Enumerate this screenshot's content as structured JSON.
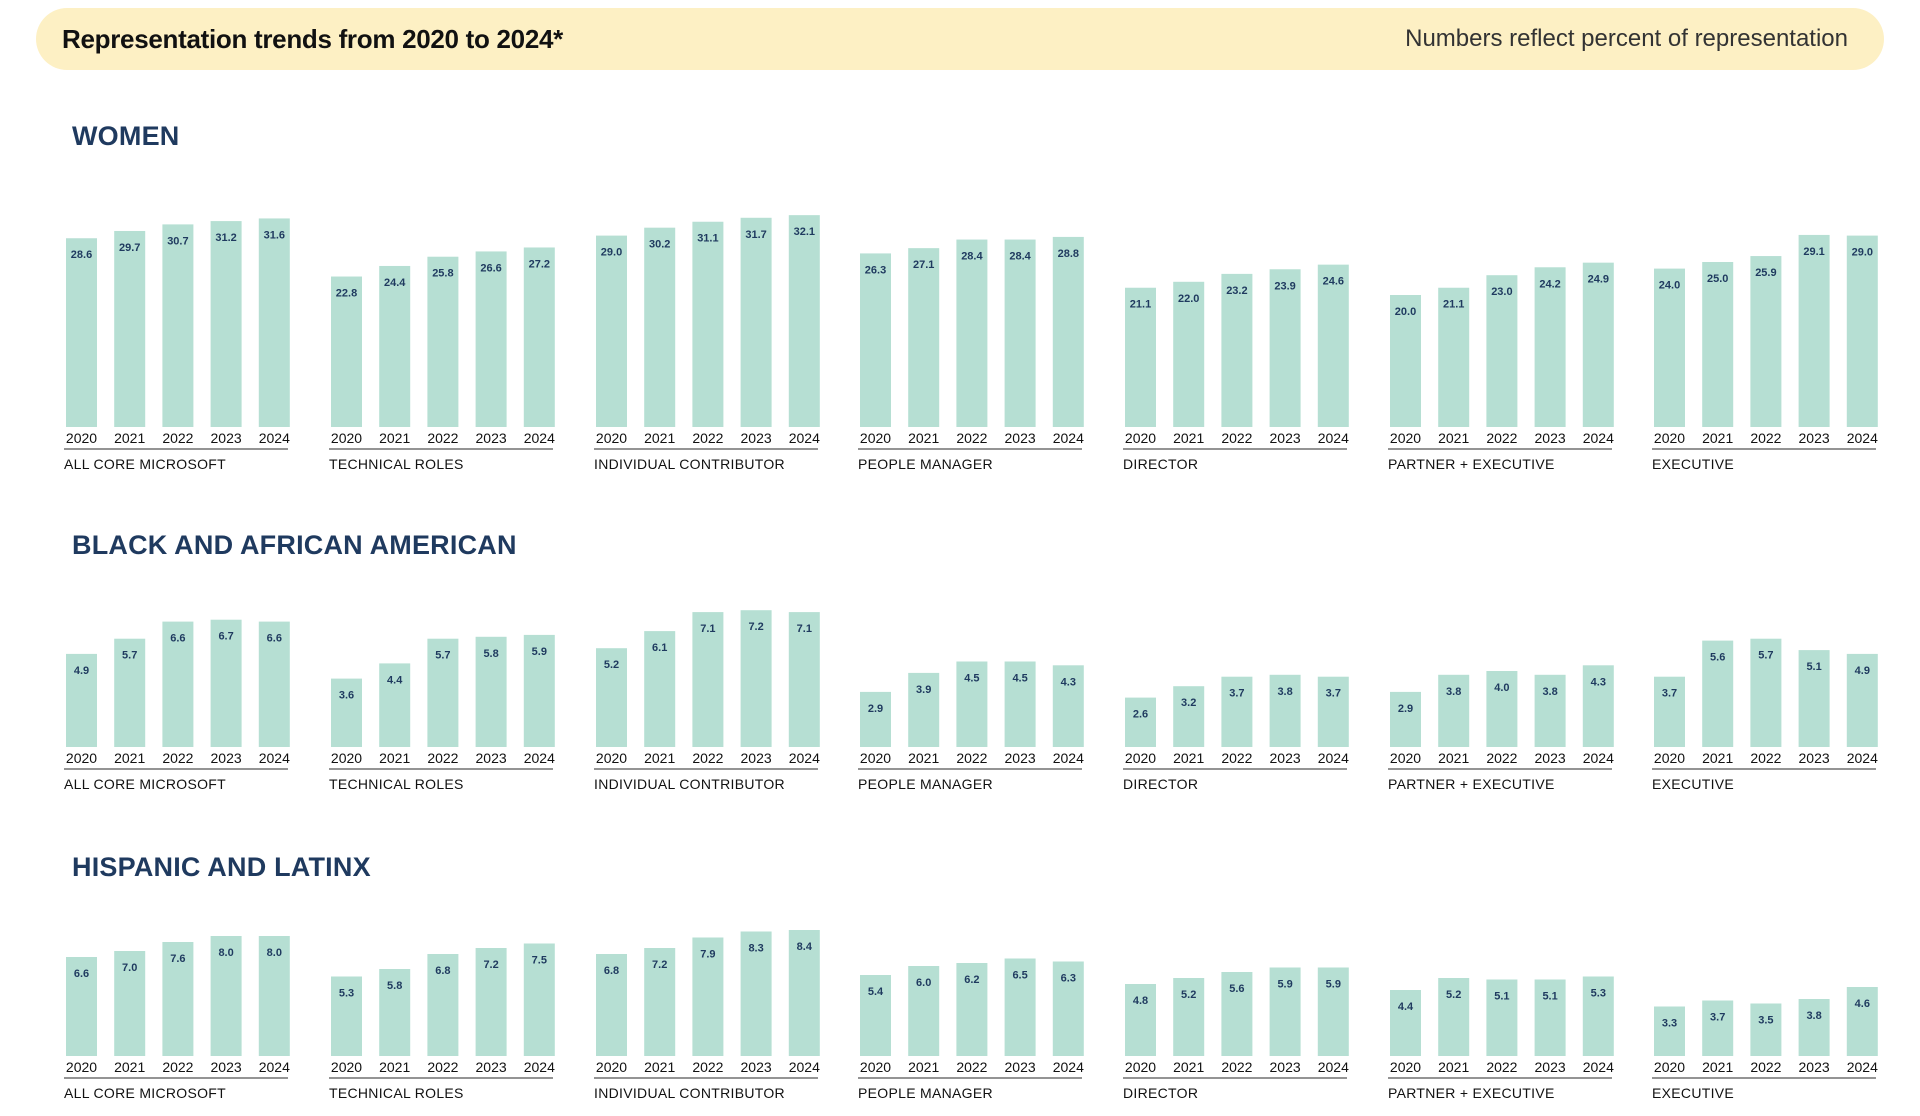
{
  "banner": {
    "title": "Representation trends from 2020 to 2024*",
    "note": "Numbers reflect percent of representation"
  },
  "colors": {
    "bar": "#b6dfd3",
    "banner_bg": "#fdf0c4",
    "heading": "#1f3a5f"
  },
  "chart_data": [
    {
      "type": "bar",
      "title": "WOMEN",
      "x": [
        "2020",
        "2021",
        "2022",
        "2023",
        "2024"
      ],
      "unit": "percent",
      "groups": [
        {
          "name": "ALL CORE MICROSOFT",
          "values": [
            28.6,
            29.7,
            30.7,
            31.2,
            31.6
          ]
        },
        {
          "name": "TECHNICAL ROLES",
          "values": [
            22.8,
            24.4,
            25.8,
            26.6,
            27.2
          ]
        },
        {
          "name": "INDIVIDUAL CONTRIBUTOR",
          "values": [
            29.0,
            30.2,
            31.1,
            31.7,
            32.1
          ]
        },
        {
          "name": "PEOPLE MANAGER",
          "values": [
            26.3,
            27.1,
            28.4,
            28.4,
            28.8
          ]
        },
        {
          "name": "DIRECTOR",
          "values": [
            21.1,
            22.0,
            23.2,
            23.9,
            24.6
          ]
        },
        {
          "name": "PARTNER + EXECUTIVE",
          "values": [
            20.0,
            21.1,
            23.0,
            24.2,
            24.9
          ]
        },
        {
          "name": "EXECUTIVE",
          "values": [
            24.0,
            25.0,
            25.9,
            29.1,
            29.0
          ]
        }
      ]
    },
    {
      "type": "bar",
      "title": "BLACK AND AFRICAN AMERICAN",
      "x": [
        "2020",
        "2021",
        "2022",
        "2023",
        "2024"
      ],
      "unit": "percent",
      "groups": [
        {
          "name": "ALL CORE MICROSOFT",
          "values": [
            4.9,
            5.7,
            6.6,
            6.7,
            6.6
          ]
        },
        {
          "name": "TECHNICAL ROLES",
          "values": [
            3.6,
            4.4,
            5.7,
            5.8,
            5.9
          ]
        },
        {
          "name": "INDIVIDUAL CONTRIBUTOR",
          "values": [
            5.2,
            6.1,
            7.1,
            7.2,
            7.1
          ]
        },
        {
          "name": "PEOPLE MANAGER",
          "values": [
            2.9,
            3.9,
            4.5,
            4.5,
            4.3
          ]
        },
        {
          "name": "DIRECTOR",
          "values": [
            2.6,
            3.2,
            3.7,
            3.8,
            3.7
          ]
        },
        {
          "name": "PARTNER + EXECUTIVE",
          "values": [
            2.9,
            3.8,
            4.0,
            3.8,
            4.3
          ]
        },
        {
          "name": "EXECUTIVE",
          "values": [
            3.7,
            5.6,
            5.7,
            5.1,
            4.9
          ]
        }
      ]
    },
    {
      "type": "bar",
      "title": "HISPANIC AND LATINX",
      "x": [
        "2020",
        "2021",
        "2022",
        "2023",
        "2024"
      ],
      "unit": "percent",
      "groups": [
        {
          "name": "ALL CORE MICROSOFT",
          "values": [
            6.6,
            7.0,
            7.6,
            8.0,
            8.0
          ]
        },
        {
          "name": "TECHNICAL ROLES",
          "values": [
            5.3,
            5.8,
            6.8,
            7.2,
            7.5
          ]
        },
        {
          "name": "INDIVIDUAL CONTRIBUTOR",
          "values": [
            6.8,
            7.2,
            7.9,
            8.3,
            8.4
          ]
        },
        {
          "name": "PEOPLE MANAGER",
          "values": [
            5.4,
            6.0,
            6.2,
            6.5,
            6.3
          ]
        },
        {
          "name": "DIRECTOR",
          "values": [
            4.8,
            5.2,
            5.6,
            5.9,
            5.9
          ]
        },
        {
          "name": "PARTNER + EXECUTIVE",
          "values": [
            4.4,
            5.2,
            5.1,
            5.1,
            5.3
          ]
        },
        {
          "name": "EXECUTIVE",
          "values": [
            3.3,
            3.7,
            3.5,
            3.8,
            4.6
          ]
        }
      ]
    }
  ]
}
